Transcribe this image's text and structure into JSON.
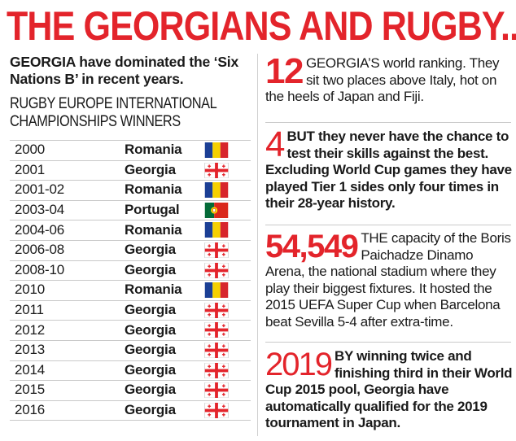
{
  "title": "THE GEORGIANS   AND RUGBY...",
  "intro": "GEORGIA have dominated the ‘Six Nations B’ in recent years.",
  "subhead_line1": "RUGBY EUROPE INTERNATIONAL",
  "subhead_line2": "CHAMPIONSHIPS WINNERS",
  "winners": [
    {
      "year": "2000",
      "country": "Romania",
      "flag": "romania-flag-icon"
    },
    {
      "year": "2001",
      "country": "Georgia",
      "flag": "georgia-flag-icon"
    },
    {
      "year": "2001-02",
      "country": "Romania",
      "flag": "romania-flag-icon"
    },
    {
      "year": "2003-04",
      "country": "Portugal",
      "flag": "portugal-flag-icon"
    },
    {
      "year": "2004-06",
      "country": "Romania",
      "flag": "romania-flag-icon"
    },
    {
      "year": "2006-08",
      "country": "Georgia",
      "flag": "georgia-flag-icon"
    },
    {
      "year": "2008-10",
      "country": "Georgia",
      "flag": "georgia-flag-icon"
    },
    {
      "year": "2010",
      "country": "Romania",
      "flag": "romania-flag-icon"
    },
    {
      "year": "2011",
      "country": "Georgia",
      "flag": "georgia-flag-icon"
    },
    {
      "year": "2012",
      "country": "Georgia",
      "flag": "georgia-flag-icon"
    },
    {
      "year": "2013",
      "country": "Georgia",
      "flag": "georgia-flag-icon"
    },
    {
      "year": "2014",
      "country": "Georgia",
      "flag": "georgia-flag-icon"
    },
    {
      "year": "2015",
      "country": "Georgia",
      "flag": "georgia-flag-icon"
    },
    {
      "year": "2016",
      "country": "Georgia",
      "flag": "georgia-flag-icon"
    }
  ],
  "facts": {
    "f1": {
      "num": "12",
      "text": "GEORGIA’S world ranking. They sit two places above Italy, hot on the heels of Japan and Fiji."
    },
    "f2": {
      "num": "4",
      "text": "BUT they never have the chance to test their skills against the best. Excluding World Cup games they have played Tier 1 sides only four times in their 28-year history."
    },
    "f3": {
      "num": "54,549",
      "text": "THE capacity of the Boris Paichadze Dinamo Arena, the national stadium where they play their biggest fixtures. It hosted the 2015 UEFA Super Cup when Barcelona beat Sevilla 5-4 after extra-time."
    },
    "f4": {
      "num": "2019",
      "text": "BY winning twice and finishing third in their World Cup 2015 pool, Georgia have automatically qualified for the 2019 tournament in Japan."
    }
  },
  "colors": {
    "accent": "#e3242b",
    "text": "#1a1a1a",
    "rule": "#c9c9c9"
  }
}
